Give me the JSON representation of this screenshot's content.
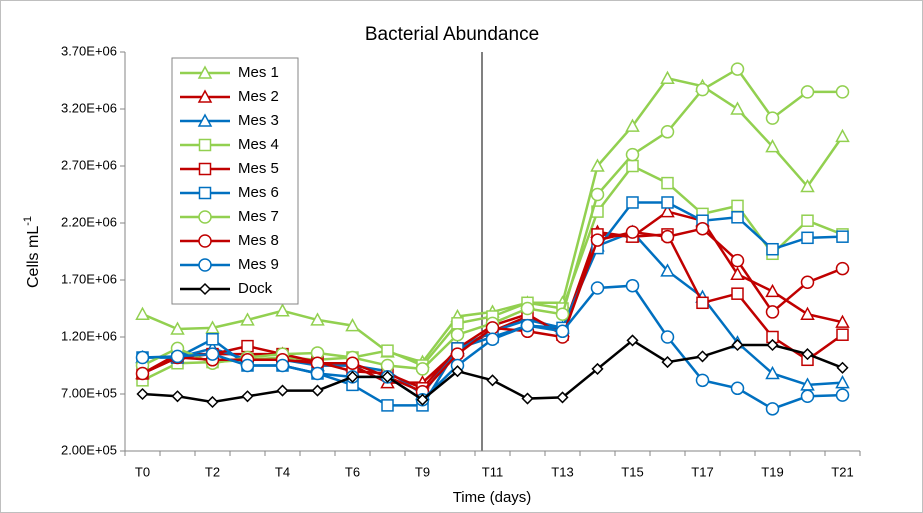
{
  "chart_data": {
    "type": "line",
    "title": "Bacterial Abundance",
    "xlabel": "Time (days)",
    "ylabel": "Cells mL",
    "ylabel_sup": "-1",
    "categories": [
      "T0",
      null,
      "T2",
      null,
      "T4",
      null,
      "T6",
      null,
      "T9",
      null,
      "T11",
      null,
      "T13",
      null,
      "T15",
      null,
      "T17",
      null,
      "T19",
      null,
      "T21"
    ],
    "ylim": [
      200000,
      3700000
    ],
    "yticks": [
      {
        "value": 200000,
        "label": "2.00E+05"
      },
      {
        "value": 700000,
        "label": "7.00E+05"
      },
      {
        "value": 1200000,
        "label": "1.20E+06"
      },
      {
        "value": 1700000,
        "label": "1.70E+06"
      },
      {
        "value": 2200000,
        "label": "2.20E+06"
      },
      {
        "value": 2700000,
        "label": "2.70E+06"
      },
      {
        "value": 3200000,
        "label": "3.20E+06"
      },
      {
        "value": 3700000,
        "label": "3.70E+06"
      }
    ],
    "grid": false,
    "legend": "upper left",
    "series": [
      {
        "name": "Mes 1",
        "color": "#92d050",
        "marker": "triangle",
        "values": [
          1400000,
          1270000,
          1280000,
          1350000,
          1430000,
          1350000,
          1300000,
          1070000,
          980000,
          1380000,
          1420000,
          1500000,
          1500000,
          2700000,
          3050000,
          3470000,
          3400000,
          3200000,
          2870000,
          2520000,
          2960000
        ]
      },
      {
        "name": "Mes 2",
        "color": "#c00000",
        "marker": "triangle",
        "values": [
          880000,
          1050000,
          1050000,
          1050000,
          1050000,
          950000,
          950000,
          800000,
          800000,
          1080000,
          1250000,
          1380000,
          1250000,
          2120000,
          2080000,
          2300000,
          2220000,
          1750000,
          1600000,
          1400000,
          1330000
        ]
      },
      {
        "name": "Mes 3",
        "color": "#0070c0",
        "marker": "triangle",
        "values": [
          1020000,
          1020000,
          1100000,
          1000000,
          1000000,
          950000,
          950000,
          900000,
          700000,
          1100000,
          1250000,
          1350000,
          1280000,
          2000000,
          2120000,
          1780000,
          1550000,
          1150000,
          880000,
          780000,
          800000
        ]
      },
      {
        "name": "Mes 4",
        "color": "#92d050",
        "marker": "square",
        "values": [
          820000,
          970000,
          980000,
          1000000,
          1020000,
          1000000,
          1020000,
          1080000,
          950000,
          1320000,
          1380000,
          1500000,
          1450000,
          2300000,
          2700000,
          2550000,
          2280000,
          2350000,
          1930000,
          2220000,
          2100000
        ]
      },
      {
        "name": "Mes 5",
        "color": "#c00000",
        "marker": "square",
        "values": [
          880000,
          1020000,
          1050000,
          1120000,
          1050000,
          980000,
          900000,
          880000,
          750000,
          1100000,
          1300000,
          1400000,
          1220000,
          2100000,
          2080000,
          2100000,
          1500000,
          1580000,
          1200000,
          1000000,
          1220000
        ]
      },
      {
        "name": "Mes 6",
        "color": "#0070c0",
        "marker": "square",
        "values": [
          1020000,
          1020000,
          1180000,
          950000,
          950000,
          880000,
          780000,
          600000,
          600000,
          1100000,
          1200000,
          1300000,
          1280000,
          1980000,
          2380000,
          2380000,
          2220000,
          2250000,
          1970000,
          2070000,
          2080000
        ]
      },
      {
        "name": "Mes 7",
        "color": "#92d050",
        "marker": "circle",
        "values": [
          950000,
          1100000,
          970000,
          1020000,
          1050000,
          1060000,
          1020000,
          950000,
          920000,
          1220000,
          1320000,
          1450000,
          1400000,
          2450000,
          2800000,
          3000000,
          3370000,
          3550000,
          3120000,
          3350000,
          3350000
        ]
      },
      {
        "name": "Mes 8",
        "color": "#c00000",
        "marker": "circle",
        "values": [
          880000,
          1020000,
          1000000,
          1000000,
          1000000,
          970000,
          970000,
          850000,
          720000,
          1050000,
          1280000,
          1250000,
          1200000,
          2050000,
          2120000,
          2080000,
          2150000,
          1870000,
          1420000,
          1680000,
          1800000
        ]
      },
      {
        "name": "Mes 9",
        "color": "#0070c0",
        "marker": "circle",
        "values": [
          1020000,
          1030000,
          1050000,
          950000,
          950000,
          880000,
          850000,
          850000,
          650000,
          950000,
          1180000,
          1300000,
          1250000,
          1630000,
          1650000,
          1200000,
          820000,
          750000,
          570000,
          680000,
          690000
        ]
      },
      {
        "name": "Dock",
        "color": "#000000",
        "marker": "diamond",
        "values": [
          700000,
          680000,
          630000,
          680000,
          730000,
          730000,
          850000,
          850000,
          650000,
          900000,
          820000,
          660000,
          670000,
          920000,
          1170000,
          980000,
          1030000,
          1130000,
          1130000,
          1050000,
          930000
        ]
      }
    ]
  }
}
